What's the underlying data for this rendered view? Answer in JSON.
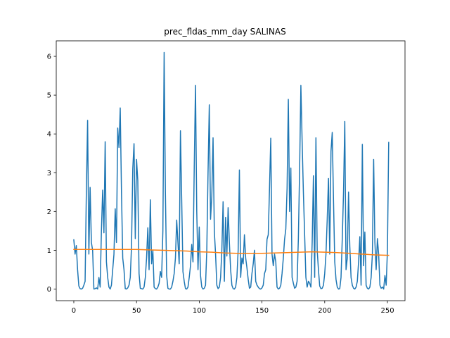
{
  "chart_data": {
    "type": "line",
    "title": "prec_fldas_mm_day SALINAS",
    "xlabel": "",
    "ylabel": "",
    "xlim": [
      -14,
      264
    ],
    "ylim": [
      -0.3,
      6.4
    ],
    "xticks": [
      0,
      50,
      100,
      150,
      200,
      250
    ],
    "yticks": [
      0,
      1,
      2,
      3,
      4,
      5,
      6
    ],
    "grid": false,
    "legend": "none",
    "series": [
      {
        "color": "#1f77b4",
        "x": [
          0,
          1,
          2,
          3,
          4,
          5,
          6,
          7,
          8,
          9,
          10,
          11,
          12,
          13,
          14,
          15,
          16,
          17,
          18,
          19,
          20,
          21,
          22,
          23,
          24,
          25,
          26,
          27,
          28,
          29,
          30,
          31,
          32,
          33,
          34,
          35,
          36,
          37,
          38,
          39,
          40,
          41,
          42,
          43,
          44,
          45,
          46,
          47,
          48,
          49,
          50,
          51,
          52,
          53,
          54,
          55,
          56,
          57,
          58,
          59,
          60,
          61,
          62,
          63,
          64,
          65,
          66,
          67,
          68,
          69,
          70,
          71,
          72,
          73,
          74,
          75,
          76,
          77,
          78,
          79,
          80,
          81,
          82,
          83,
          84,
          85,
          86,
          87,
          88,
          89,
          90,
          91,
          92,
          93,
          94,
          95,
          96,
          97,
          98,
          99,
          100,
          101,
          102,
          103,
          104,
          105,
          106,
          107,
          108,
          109,
          110,
          111,
          112,
          113,
          114,
          115,
          116,
          117,
          118,
          119,
          120,
          121,
          122,
          123,
          124,
          125,
          126,
          127,
          128,
          129,
          130,
          131,
          132,
          133,
          134,
          135,
          136,
          137,
          138,
          139,
          140,
          141,
          142,
          143,
          144,
          145,
          146,
          147,
          148,
          149,
          150,
          151,
          152,
          153,
          154,
          155,
          156,
          157,
          158,
          159,
          160,
          161,
          162,
          163,
          164,
          165,
          166,
          167,
          168,
          169,
          170,
          171,
          172,
          173,
          174,
          175,
          176,
          177,
          178,
          179,
          180,
          181,
          182,
          183,
          184,
          185,
          186,
          187,
          188,
          189,
          190,
          191,
          192,
          193,
          194,
          195,
          196,
          197,
          198,
          199,
          200,
          201,
          202,
          203,
          204,
          205,
          206,
          207,
          208,
          209,
          210,
          211,
          212,
          213,
          214,
          215,
          216,
          217,
          218,
          219,
          220,
          221,
          222,
          223,
          224,
          225,
          226,
          227,
          228,
          229,
          230,
          231,
          232,
          233,
          234,
          235,
          236,
          237,
          238,
          239,
          240,
          241,
          242,
          243,
          244,
          245,
          246,
          247,
          248,
          249,
          250,
          251
        ],
        "values": [
          1.27,
          0.9,
          1.12,
          0.5,
          0.08,
          0.01,
          0.0,
          0.02,
          0.1,
          0.2,
          2.5,
          4.35,
          0.9,
          2.62,
          1.2,
          1.0,
          0.0,
          0.01,
          0.03,
          0.0,
          0.3,
          0.05,
          1.5,
          2.55,
          1.45,
          3.8,
          0.7,
          0.3,
          0.05,
          0.0,
          0.1,
          0.5,
          0.9,
          2.07,
          1.2,
          4.15,
          3.65,
          4.67,
          2.5,
          0.8,
          0.5,
          0.01,
          0.0,
          0.03,
          0.1,
          0.3,
          1.1,
          3.1,
          3.75,
          1.3,
          3.34,
          2.8,
          0.4,
          0.02,
          0.01,
          0.0,
          0.05,
          0.3,
          0.8,
          1.58,
          0.5,
          2.3,
          0.65,
          1.0,
          0.05,
          0.01,
          0.0,
          0.05,
          0.15,
          0.45,
          0.3,
          1.5,
          6.1,
          2.5,
          0.35,
          0.02,
          0.0,
          0.0,
          0.05,
          0.2,
          0.4,
          0.8,
          1.78,
          1.2,
          0.65,
          4.08,
          2.3,
          0.45,
          0.2,
          0.01,
          0.0,
          0.05,
          0.3,
          0.6,
          1.15,
          0.7,
          3.15,
          5.25,
          2.0,
          0.5,
          1.6,
          0.35,
          0.05,
          0.0,
          0.02,
          0.1,
          1.0,
          3.0,
          4.75,
          1.8,
          2.4,
          3.9,
          1.5,
          0.9,
          0.1,
          0.01,
          0.05,
          0.3,
          1.0,
          2.25,
          0.2,
          1.85,
          0.85,
          2.1,
          1.2,
          0.5,
          0.1,
          0.01,
          0.0,
          0.05,
          0.3,
          1.0,
          3.07,
          0.3,
          0.8,
          0.65,
          1.4,
          0.8,
          0.55,
          0.25,
          0.02,
          0.05,
          0.4,
          0.65,
          1.0,
          0.2,
          0.1,
          0.05,
          0.01,
          0.0,
          0.03,
          0.1,
          0.4,
          0.5,
          1.28,
          1.4,
          2.6,
          3.89,
          0.9,
          0.6,
          0.9,
          0.7,
          0.05,
          0.0,
          0.02,
          0.1,
          0.4,
          0.8,
          1.28,
          1.55,
          2.6,
          4.89,
          2.0,
          3.12,
          0.3,
          0.15,
          0.02,
          0.05,
          0.2,
          1.3,
          3.1,
          5.25,
          3.8,
          2.5,
          1.4,
          0.3,
          0.05,
          0.2,
          0.15,
          0.05,
          1.2,
          2.92,
          0.3,
          3.9,
          1.0,
          0.5,
          0.08,
          0.01,
          0.02,
          0.1,
          0.4,
          0.9,
          1.8,
          2.85,
          0.9,
          3.55,
          4.04,
          2.3,
          0.7,
          0.25,
          0.05,
          0.0,
          0.01,
          0.3,
          1.3,
          2.5,
          4.32,
          0.5,
          0.8,
          2.5,
          1.1,
          0.3,
          0.1,
          0.02,
          0.0,
          0.05,
          0.2,
          0.7,
          1.35,
          0.1,
          3.73,
          0.6,
          1.47,
          0.1,
          0.02,
          0.0,
          0.05,
          0.3,
          0.9,
          3.34,
          1.2,
          0.5,
          1.3,
          0.9,
          0.1,
          0.02,
          0.05,
          0.0,
          0.35,
          0.1,
          1.0,
          3.78
        ]
      },
      {
        "color": "#ff7f0e",
        "x": [
          0,
          10,
          20,
          30,
          40,
          50,
          60,
          70,
          80,
          90,
          100,
          110,
          120,
          130,
          140,
          150,
          160,
          170,
          180,
          190,
          200,
          210,
          220,
          230,
          240,
          251
        ],
        "values": [
          1.02,
          1.02,
          1.02,
          1.02,
          1.02,
          1.02,
          1.01,
          1.0,
          0.99,
          0.98,
          0.96,
          0.95,
          0.93,
          0.92,
          0.92,
          0.92,
          0.93,
          0.94,
          0.95,
          0.96,
          0.95,
          0.94,
          0.92,
          0.9,
          0.88,
          0.87
        ]
      }
    ]
  }
}
